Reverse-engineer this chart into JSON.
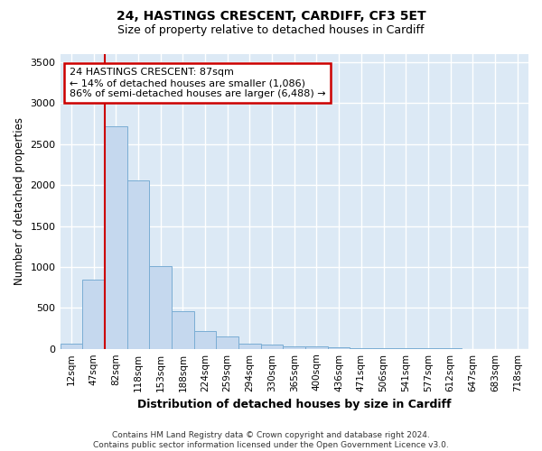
{
  "title1": "24, HASTINGS CRESCENT, CARDIFF, CF3 5ET",
  "title2": "Size of property relative to detached houses in Cardiff",
  "xlabel": "Distribution of detached houses by size in Cardiff",
  "ylabel": "Number of detached properties",
  "bar_labels": [
    "12sqm",
    "47sqm",
    "82sqm",
    "118sqm",
    "153sqm",
    "188sqm",
    "224sqm",
    "259sqm",
    "294sqm",
    "330sqm",
    "365sqm",
    "400sqm",
    "436sqm",
    "471sqm",
    "506sqm",
    "541sqm",
    "577sqm",
    "612sqm",
    "647sqm",
    "683sqm",
    "718sqm"
  ],
  "bar_values": [
    60,
    850,
    2720,
    2060,
    1010,
    460,
    220,
    150,
    65,
    50,
    35,
    28,
    20,
    10,
    5,
    3,
    2,
    2,
    1,
    1,
    0
  ],
  "bar_color": "#c5d8ee",
  "bar_edgecolor": "#7aadd4",
  "vline_bar_index": 2,
  "vline_color": "#cc0000",
  "annotation_line1": "24 HASTINGS CRESCENT: 87sqm",
  "annotation_line2": "← 14% of detached houses are smaller (1,086)",
  "annotation_line3": "86% of semi-detached houses are larger (6,488) →",
  "annotation_box_edgecolor": "#cc0000",
  "ylim": [
    0,
    3600
  ],
  "yticks": [
    0,
    500,
    1000,
    1500,
    2000,
    2500,
    3000,
    3500
  ],
  "plot_bg_color": "#dce9f5",
  "fig_bg_color": "#ffffff",
  "grid_color": "#ffffff",
  "footnote": "Contains HM Land Registry data © Crown copyright and database right 2024.\nContains public sector information licensed under the Open Government Licence v3.0."
}
